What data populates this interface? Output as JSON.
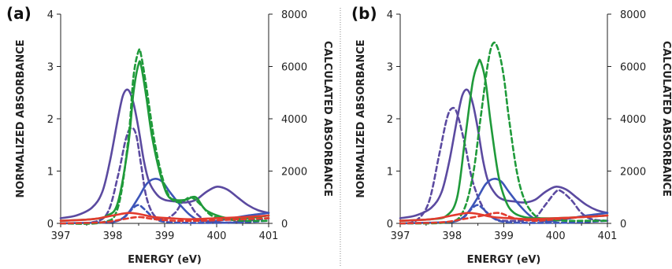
{
  "chart_data": [
    {
      "type": "line",
      "panel_label": "(a)",
      "xlabel": "ENERGY (eV)",
      "ylabel_left": "NORMALIZED ABSORBANCE",
      "ylabel_right": "CALCULATED ABSORBANCE",
      "xlim": [
        397,
        401
      ],
      "ylim_left": [
        0,
        4
      ],
      "ylim_right": [
        0,
        8000
      ],
      "xticks": [
        397,
        398,
        399,
        400,
        401
      ],
      "yticks_left": [
        0,
        1,
        2,
        3,
        4
      ],
      "yticks_right": [
        0,
        2000,
        4000,
        6000,
        8000
      ],
      "series": [
        {
          "color": "#5b4aa0",
          "style": "solid",
          "x": [
            397,
            397.3,
            397.6,
            397.8,
            397.95,
            398.1,
            398.2,
            398.3,
            398.4,
            398.5,
            398.6,
            398.7,
            398.85,
            399.0,
            399.2,
            399.4,
            399.6,
            399.8,
            400.0,
            400.2,
            400.4,
            400.6,
            400.8,
            401
          ],
          "y": [
            0.1,
            0.15,
            0.3,
            0.6,
            1.2,
            2.0,
            2.45,
            2.55,
            2.3,
            1.8,
            1.2,
            0.8,
            0.55,
            0.45,
            0.42,
            0.4,
            0.45,
            0.6,
            0.7,
            0.65,
            0.5,
            0.35,
            0.25,
            0.2
          ]
        },
        {
          "color": "#5b4aa0",
          "style": "dashed",
          "x": [
            397,
            397.6,
            397.9,
            398.1,
            398.25,
            398.35,
            398.45,
            398.55,
            398.65,
            398.8,
            399.0,
            399.2,
            399.4,
            399.6,
            399.8,
            400.0,
            400.3,
            400.6,
            401
          ],
          "y": [
            0,
            0.02,
            0.2,
            0.9,
            1.6,
            1.82,
            1.7,
            1.1,
            0.5,
            0.15,
            0.08,
            0.2,
            0.45,
            0.2,
            0.05,
            0.02,
            0.02,
            0.05,
            0.1
          ]
        },
        {
          "color": "#3d55b8",
          "style": "solid",
          "x": [
            397,
            397.8,
            398.1,
            398.3,
            398.5,
            398.65,
            398.8,
            398.95,
            399.1,
            399.3,
            399.5,
            399.7,
            400.0,
            400.3,
            400.6,
            401
          ],
          "y": [
            0,
            0.02,
            0.05,
            0.2,
            0.5,
            0.75,
            0.85,
            0.8,
            0.6,
            0.35,
            0.15,
            0.05,
            0.05,
            0.1,
            0.15,
            0.2
          ]
        },
        {
          "color": "#3d55b8",
          "style": "dashed",
          "x": [
            397,
            397.9,
            398.2,
            398.4,
            398.5,
            398.6,
            398.8,
            399.0,
            399.4,
            400.0,
            400.5,
            401
          ],
          "y": [
            0,
            0.02,
            0.1,
            0.3,
            0.35,
            0.28,
            0.1,
            0.03,
            0.01,
            0.01,
            0.02,
            0.05
          ]
        },
        {
          "color": "#1f9a3a",
          "style": "solid",
          "x": [
            397,
            397.6,
            397.9,
            398.1,
            398.3,
            398.4,
            398.5,
            398.55,
            398.65,
            398.75,
            398.9,
            399.05,
            399.2,
            399.4,
            399.6,
            399.8,
            400.2,
            400.6,
            401
          ],
          "y": [
            0.05,
            0.08,
            0.15,
            0.4,
            1.5,
            2.5,
            3.05,
            3.0,
            2.4,
            1.7,
            1.0,
            0.55,
            0.45,
            0.45,
            0.5,
            0.25,
            0.1,
            0.1,
            0.15
          ]
        },
        {
          "color": "#1f9a3a",
          "style": "dashed",
          "x": [
            397,
            397.8,
            398.1,
            398.3,
            398.4,
            398.5,
            398.55,
            398.65,
            398.8,
            398.95,
            399.1,
            399.3,
            399.5,
            399.7,
            399.9,
            400.2,
            400.5,
            401
          ],
          "y": [
            0,
            0.02,
            0.3,
            1.6,
            2.8,
            3.3,
            3.2,
            2.6,
            1.6,
            0.9,
            0.5,
            0.4,
            0.5,
            0.35,
            0.15,
            0.08,
            0.05,
            0.05
          ]
        },
        {
          "color": "#e23b2e",
          "style": "solid",
          "x": [
            397,
            397.6,
            398.0,
            398.3,
            398.5,
            398.8,
            399.1,
            399.5,
            400.0,
            400.5,
            401
          ],
          "y": [
            0.05,
            0.08,
            0.15,
            0.2,
            0.18,
            0.12,
            0.1,
            0.08,
            0.1,
            0.12,
            0.15
          ]
        },
        {
          "color": "#e23b2e",
          "style": "dashed",
          "x": [
            397,
            397.8,
            398.2,
            398.5,
            398.8,
            399.2,
            399.6,
            400.0,
            400.5,
            401
          ],
          "y": [
            0,
            0.02,
            0.08,
            0.12,
            0.08,
            0.05,
            0.05,
            0.06,
            0.08,
            0.1
          ]
        }
      ]
    },
    {
      "type": "line",
      "panel_label": "(b)",
      "xlabel": "ENERGY (eV)",
      "ylabel_left": "NORMALIZED ABSORBANCE",
      "ylabel_right": "CALCULATED ABSORBANCE",
      "xlim": [
        397,
        401
      ],
      "ylim_left": [
        0,
        4
      ],
      "ylim_right": [
        0,
        8000
      ],
      "xticks": [
        397,
        398,
        399,
        400,
        401
      ],
      "yticks_left": [
        0,
        1,
        2,
        3,
        4
      ],
      "yticks_right": [
        0,
        2000,
        4000,
        6000,
        8000
      ],
      "series": [
        {
          "color": "#5b4aa0",
          "style": "solid",
          "x": [
            397,
            397.3,
            397.6,
            397.8,
            397.95,
            398.1,
            398.2,
            398.3,
            398.4,
            398.5,
            398.6,
            398.7,
            398.85,
            399.0,
            399.2,
            399.4,
            399.6,
            399.8,
            400.0,
            400.2,
            400.4,
            400.6,
            400.8,
            401
          ],
          "y": [
            0.1,
            0.15,
            0.3,
            0.6,
            1.2,
            2.0,
            2.45,
            2.55,
            2.3,
            1.8,
            1.2,
            0.8,
            0.55,
            0.45,
            0.42,
            0.4,
            0.45,
            0.6,
            0.7,
            0.65,
            0.5,
            0.35,
            0.25,
            0.2
          ]
        },
        {
          "color": "#5b4aa0",
          "style": "dashed",
          "x": [
            397,
            397.3,
            397.55,
            397.75,
            397.9,
            398.0,
            398.1,
            398.25,
            398.4,
            398.6,
            398.8,
            399.0,
            399.2,
            399.4,
            399.6,
            399.8,
            400.0,
            400.1,
            400.3,
            400.5,
            400.7,
            401
          ],
          "y": [
            0,
            0.05,
            0.4,
            1.3,
            2.0,
            2.2,
            2.1,
            1.5,
            0.8,
            0.3,
            0.1,
            0.05,
            0.05,
            0.05,
            0.1,
            0.35,
            0.6,
            0.62,
            0.45,
            0.2,
            0.08,
            0.05
          ]
        },
        {
          "color": "#3d55b8",
          "style": "solid",
          "x": [
            397,
            397.8,
            398.1,
            398.3,
            398.5,
            398.65,
            398.8,
            398.95,
            399.1,
            399.3,
            399.5,
            399.7,
            400.0,
            400.3,
            400.6,
            401
          ],
          "y": [
            0,
            0.02,
            0.05,
            0.2,
            0.5,
            0.75,
            0.85,
            0.8,
            0.6,
            0.35,
            0.15,
            0.05,
            0.05,
            0.1,
            0.15,
            0.2
          ]
        },
        {
          "color": "#3d55b8",
          "style": "dashed",
          "x": [
            397,
            397.9,
            398.2,
            398.4,
            398.5,
            398.6,
            398.8,
            399.0,
            399.4,
            400.0,
            400.5,
            401
          ],
          "y": [
            0,
            0.02,
            0.1,
            0.3,
            0.35,
            0.28,
            0.1,
            0.03,
            0.01,
            0.01,
            0.02,
            0.05
          ]
        },
        {
          "color": "#1f9a3a",
          "style": "solid",
          "x": [
            397,
            397.6,
            397.9,
            398.1,
            398.25,
            398.4,
            398.5,
            398.55,
            398.65,
            398.75,
            398.9,
            399.05,
            399.2,
            399.4,
            399.6,
            400.0,
            400.5,
            401
          ],
          "y": [
            0.05,
            0.08,
            0.15,
            0.5,
            1.6,
            2.7,
            3.05,
            3.1,
            2.7,
            1.9,
            0.9,
            0.4,
            0.2,
            0.12,
            0.1,
            0.1,
            0.12,
            0.15
          ]
        },
        {
          "color": "#1f9a3a",
          "style": "dashed",
          "x": [
            397,
            397.9,
            398.2,
            398.4,
            398.55,
            398.7,
            398.8,
            398.9,
            399.0,
            399.1,
            399.25,
            399.4,
            399.6,
            399.8,
            400.2,
            400.6,
            401
          ],
          "y": [
            0,
            0.02,
            0.2,
            0.9,
            2.0,
            3.1,
            3.45,
            3.3,
            2.8,
            2.0,
            1.0,
            0.45,
            0.15,
            0.08,
            0.05,
            0.05,
            0.05
          ]
        },
        {
          "color": "#e23b2e",
          "style": "solid",
          "x": [
            397,
            397.6,
            398.0,
            398.3,
            398.5,
            398.8,
            399.1,
            399.5,
            400.0,
            400.5,
            401
          ],
          "y": [
            0.05,
            0.08,
            0.15,
            0.2,
            0.18,
            0.12,
            0.1,
            0.08,
            0.1,
            0.12,
            0.15
          ]
        },
        {
          "color": "#e23b2e",
          "style": "dashed",
          "x": [
            397,
            397.8,
            398.2,
            398.6,
            398.9,
            399.2,
            399.6,
            400.0,
            400.5,
            401
          ],
          "y": [
            0,
            0.02,
            0.08,
            0.15,
            0.2,
            0.1,
            0.05,
            0.08,
            0.12,
            0.15
          ]
        }
      ]
    }
  ]
}
